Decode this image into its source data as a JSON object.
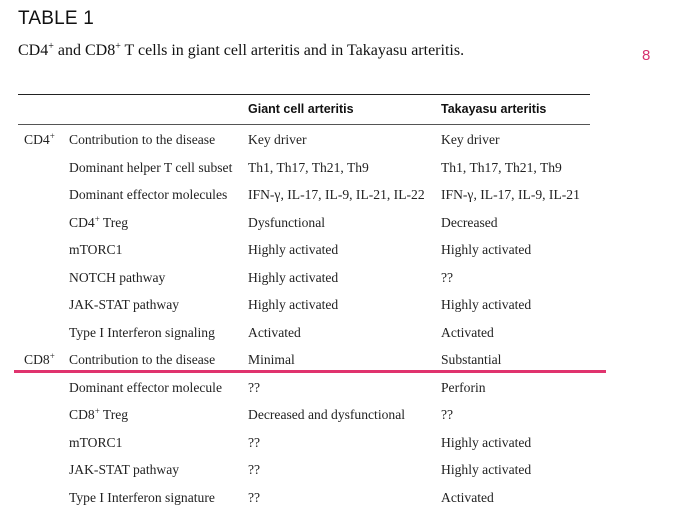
{
  "table_label": "TABLE 1",
  "caption": {
    "part1": "CD4",
    "sup1": "+",
    "part2": " and CD8",
    "sup2": "+",
    "part3": " T cells in giant cell arteritis and in Takayasu arteritis."
  },
  "page_number": "8",
  "columns": {
    "gca": "Giant cell arteritis",
    "tak": "Takayasu arteritis"
  },
  "rows": [
    {
      "group": "CD4",
      "group_sup": "+",
      "param": "Contribution to the disease",
      "param_sup": "",
      "param_rest": "",
      "gca": "Key driver",
      "tak": "Key driver"
    },
    {
      "group": "",
      "group_sup": "",
      "param": "Dominant helper T cell subset",
      "param_sup": "",
      "param_rest": "",
      "gca": "Th1, Th17, Th21, Th9",
      "tak": "Th1, Th17, Th21, Th9"
    },
    {
      "group": "",
      "group_sup": "",
      "param": "Dominant effector molecules",
      "param_sup": "",
      "param_rest": "",
      "gca": "IFN-γ, IL-17, IL-9, IL-21, IL-22",
      "tak": "IFN-γ, IL-17, IL-9, IL-21"
    },
    {
      "group": "",
      "group_sup": "",
      "param": "CD4",
      "param_sup": "+",
      "param_rest": " Treg",
      "gca": "Dysfunctional",
      "tak": "Decreased"
    },
    {
      "group": "",
      "group_sup": "",
      "param": "mTORC1",
      "param_sup": "",
      "param_rest": "",
      "gca": "Highly activated",
      "tak": "Highly activated"
    },
    {
      "group": "",
      "group_sup": "",
      "param": "NOTCH pathway",
      "param_sup": "",
      "param_rest": "",
      "gca": "Highly activated",
      "tak": "??"
    },
    {
      "group": "",
      "group_sup": "",
      "param": "JAK-STAT pathway",
      "param_sup": "",
      "param_rest": "",
      "gca": "Highly activated",
      "tak": "Highly activated"
    },
    {
      "group": "",
      "group_sup": "",
      "param": "Type I Interferon signaling",
      "param_sup": "",
      "param_rest": "",
      "gca": "Activated",
      "tak": "Activated"
    },
    {
      "group": "CD8",
      "group_sup": "+",
      "param": "Contribution to the disease",
      "param_sup": "",
      "param_rest": "",
      "gca": "Minimal",
      "tak": "Substantial"
    },
    {
      "group": "",
      "group_sup": "",
      "param": "Dominant effector molecule",
      "param_sup": "",
      "param_rest": "",
      "gca": "??",
      "tak": "Perforin"
    },
    {
      "group": "",
      "group_sup": "",
      "param": "CD8",
      "param_sup": "+",
      "param_rest": " Treg",
      "gca": "Decreased and dysfunctional",
      "tak": "??"
    },
    {
      "group": "",
      "group_sup": "",
      "param": "mTORC1",
      "param_sup": "",
      "param_rest": "",
      "gca": "??",
      "tak": "Highly activated"
    },
    {
      "group": "",
      "group_sup": "",
      "param": "JAK-STAT pathway",
      "param_sup": "",
      "param_rest": "",
      "gca": "??",
      "tak": "Highly activated"
    },
    {
      "group": "",
      "group_sup": "",
      "param": "Type I Interferon signature",
      "param_sup": "",
      "param_rest": "",
      "gca": "??",
      "tak": "Activated"
    }
  ],
  "highlight_color": "#e0336e"
}
